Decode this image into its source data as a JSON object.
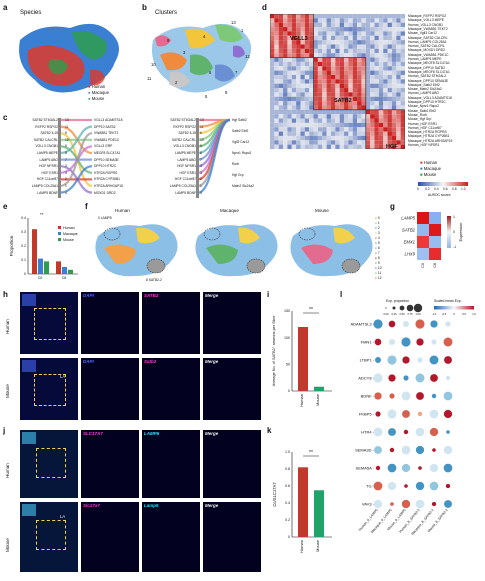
{
  "panels": {
    "a": "a",
    "b": "b",
    "c": "c",
    "d": "d",
    "e": "e",
    "f": "f",
    "g": "g",
    "h": "h",
    "i": "i",
    "j": "j",
    "k": "k",
    "l": "l"
  },
  "a": {
    "title": "Species",
    "legend": [
      {
        "name": "Human",
        "color": "#e0392b"
      },
      {
        "name": "Macaque",
        "color": "#3a7fd1"
      },
      {
        "name": "Mouse",
        "color": "#2e9e4e"
      }
    ]
  },
  "b": {
    "title": "Clusters",
    "labels": [
      "1",
      "2",
      "3",
      "4",
      "5",
      "6",
      "7",
      "8",
      "9",
      "10",
      "11",
      "12",
      "13"
    ]
  },
  "c": {
    "left_labels": [
      "SATB2 ST6GAL2",
      "RXFP2 RSPO2",
      "SATB2 IL15",
      "SATB2 CALCRL",
      "VGLL3 CNGB1",
      "LAMP5 MEPE",
      "LAMP5 ABO",
      "HGF NPSR1",
      "HGF ESR1",
      "HGF C11orf87",
      "LAMP5 COL25A1",
      "LAMP5 BDNF"
    ],
    "mid_labels": [
      "VGLL3 ADAMTS18",
      "DPP10 SATB2",
      "VWA5B1 TEKT2",
      "VWA5B1 PDE1C",
      "VGLL3 GRP",
      "MEGF8 SLC47A1",
      "DPP10 SEMA3E",
      "DPP10 HTR2C",
      "HTR2A RGPRS",
      "HTR2A CYP26B1",
      "HTR2A ARHGAP15",
      "MOXD1 DRD2"
    ],
    "mid2_labels": [
      "SATB2 ST6GAL2",
      "RXFP2 RSPO2",
      "SATB2 IL15",
      "SATB2 CALCRL",
      "VGLL3 CNGB1",
      "LAMP5 MEPE",
      "LAMP5 ABO",
      "HGF NPSR1",
      "HGF ESR1",
      "HGF C11orf87",
      "LAMP5 COL25A1",
      "LAMP5 BDNF"
    ],
    "right_labels": [
      "Hgf Satb2",
      "Satb2 Ebf2",
      "Vgll3 Car12",
      "Npsr1 Rspo2",
      "Rorb",
      "Hgf Grp",
      "Matn2 Slc24a2"
    ],
    "numbers": [
      "13",
      "11",
      "6",
      "10",
      "9",
      "8",
      "7",
      "3",
      "3",
      "2",
      "1",
      "4"
    ]
  },
  "d": {
    "boxes": [
      "VGLL3",
      "SATB2",
      "HGF"
    ],
    "row_labels": [
      "Macaque_RXFP2 RSPO2",
      "Macaque_VGLL3 MEPE",
      "Human_VGLL3 CNGB1",
      "Macaque_VWA5B1 TEKT2",
      "Mouse_Vgll3 Car12",
      "Macaque_SATB2 CALCRL",
      "Human_LAMP5 COL25A1",
      "Human_SATB2 CALCRL",
      "Macaque_MOXD1 DRD2",
      "Macaque_VWA5B1 PDE1C",
      "Human_LAMP5 MEPE",
      "Macaque_MEGF8 SLC47A1",
      "Macaque_DPP10 SATB2",
      "Macaque_MEGF8 SLC47A1",
      "Human_SATB2 ST6GAL2",
      "Macaque_DPP10 SEMA3E",
      "Macaque_Satb2 Ebf2",
      "Mouse_Matn2 Slc24a2",
      "Human_LAMP5 ABO",
      "Macaque_VGLL3 ADAMTS18",
      "Macaque_DPP10 HTR2C",
      "Mouse_Npsr1 Rspo2",
      "Mouse_Satb2 Ebf2",
      "Mouse_Rorb",
      "Mouse_Hgf Grp",
      "Human_HGF ESR1",
      "Human_HGF C11orf87",
      "Macaque_HTR2A RGPRS",
      "Macaque_HTR2A CYP26B1",
      "Macaque_HTR2A ARHGAP15",
      "Human_HGF NPSR1"
    ],
    "legend": [
      {
        "name": "Human",
        "color": "#e0392b"
      },
      {
        "name": "Macaque",
        "color": "#3a7fd1"
      },
      {
        "name": "Mouse",
        "color": "#2e9e4e"
      }
    ],
    "colorbar_label": "AUROC scores",
    "colorbar_ticks": [
      "0",
      "0.2",
      "0.4",
      "0.6",
      "0.8",
      "1.0"
    ]
  },
  "e": {
    "ylabel": "Proportion",
    "yticks": [
      "0.4",
      "0.3",
      "0.2",
      "0.1",
      "0"
    ],
    "xticks": [
      "C0",
      "C8"
    ],
    "sig": "**",
    "legend": [
      {
        "name": "Human",
        "color": "#c0392b"
      },
      {
        "name": "Macaque",
        "color": "#3a7fd1"
      },
      {
        "name": "Mouse",
        "color": "#2e9e4e"
      }
    ]
  },
  "f": {
    "titles": [
      "Human",
      "Macaque",
      "Mouse"
    ],
    "annot_top": "0 LAMP5",
    "annot_bottom": "8 SATB2-2",
    "legend": [
      "0",
      "1",
      "2",
      "3",
      "4",
      "5",
      "6",
      "7",
      "8",
      "9",
      "10",
      "11",
      "12"
    ]
  },
  "g": {
    "genes": [
      "LAMP5",
      "SATB2",
      "EMX1",
      "LHX9"
    ],
    "cols": [
      "C0",
      "C8"
    ],
    "scale_label": "Expression",
    "scale_ticks": [
      "1",
      "0",
      "-1"
    ],
    "values": [
      [
        1.0,
        -0.6
      ],
      [
        -0.4,
        0.9
      ],
      [
        0.1,
        -0.3
      ],
      [
        -0.2,
        0.4
      ]
    ]
  },
  "h": {
    "rows": [
      "Human",
      "Mouse"
    ],
    "human_caps": [
      "DAPI",
      "SATB2",
      "Merge"
    ],
    "mouse_caps": [
      "DAPI",
      "Satb2",
      "Merge"
    ],
    "la": "LA"
  },
  "i": {
    "ylabel": "Average No. of SATB2⁺ neurons per Slice",
    "yticks": [
      "150",
      "100",
      "50",
      "0"
    ],
    "cats": [
      "Human",
      "Mouse"
    ],
    "values": [
      120,
      8
    ],
    "sig": "**"
  },
  "j": {
    "rows": [
      "Human",
      "Mouse"
    ],
    "human_caps": [
      "SLC17A7",
      "LAMP5",
      "Merge"
    ],
    "mouse_caps": [
      "Slc17a7",
      "Lamp5",
      "Merge"
    ],
    "la": "LA"
  },
  "k": {
    "ylabel": "Co/SLC17A7",
    "yticks": [
      "1.0",
      "0.8",
      "0.6",
      "0.4",
      "0.2",
      "0"
    ],
    "cats": [
      "Human",
      "Mouse"
    ],
    "values": [
      0.82,
      0.55
    ],
    "sig": "**"
  },
  "l": {
    "genes": [
      "ADAMTSL3",
      "FMN1",
      "LTBP1",
      "ADCY8",
      "BDNF",
      "FKBP5",
      "HTR4",
      "SEMA3D",
      "SEMA5A",
      "TG",
      "VAV3"
    ],
    "cols": [
      "Human_0_LAMP5",
      "Macaque_0_LAMP5",
      "Mouse_0_LAMP5",
      "Human_8_SATB2-2",
      "Macaque_8_SATB2-2",
      "Mouse_8_SATB2-2"
    ],
    "legend_size_title": "Exp. proportion",
    "legend_color_title": "Scaled mean Exp.",
    "size_ticks": [
      "0.00",
      "0.25",
      "0.50",
      "0.75",
      "1.00"
    ],
    "color_ticks": [
      "-1.0",
      "-0.5",
      "0",
      "0.5",
      "1.0"
    ]
  }
}
